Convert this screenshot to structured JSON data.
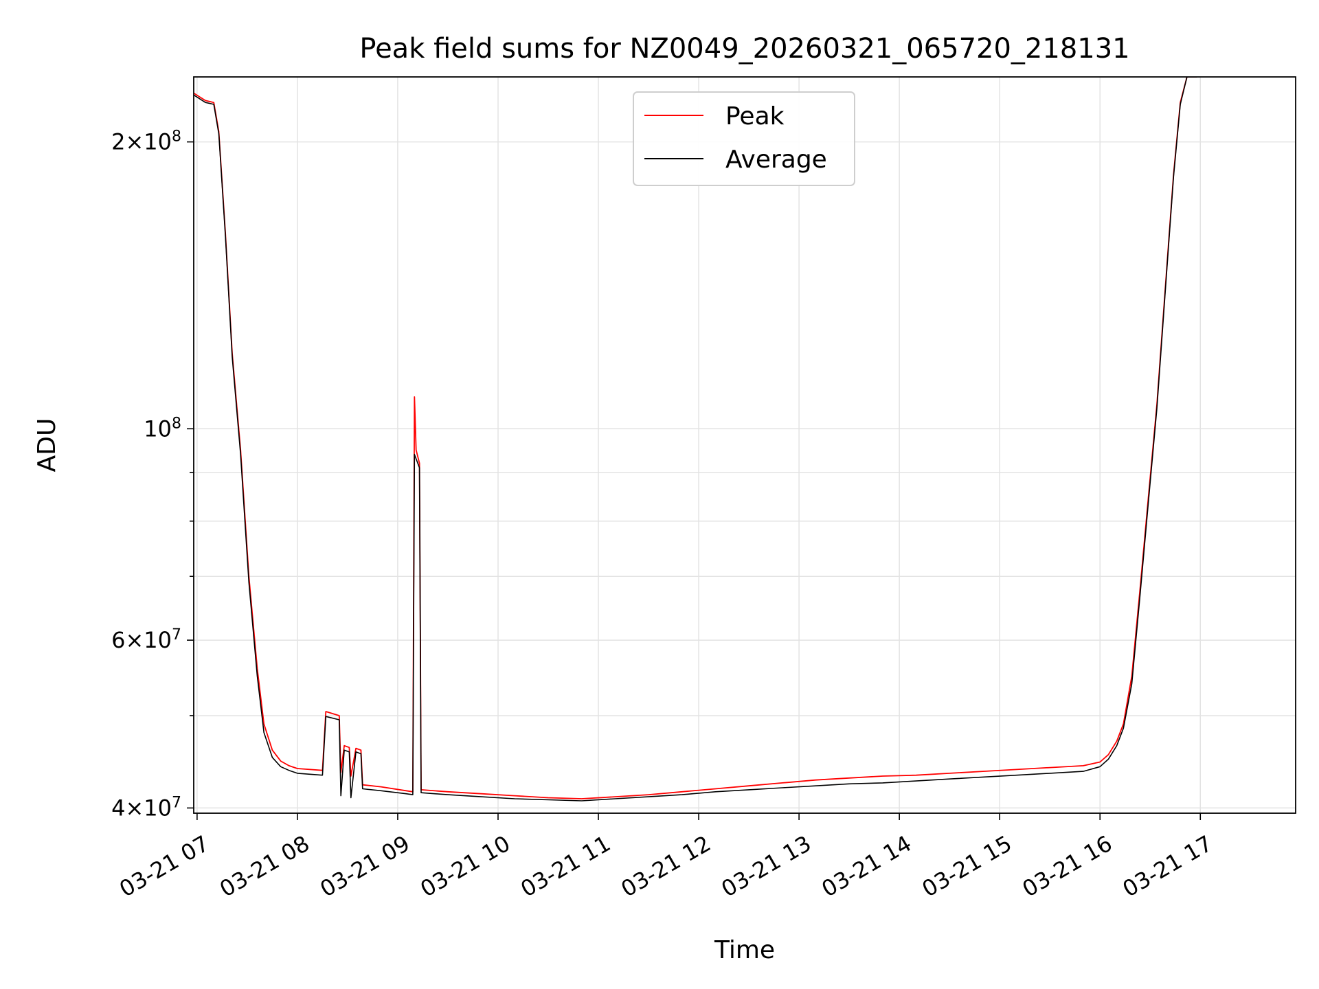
{
  "chart_data": {
    "type": "line",
    "title": "Peak field sums for NZ0049_20260321_065720_218131",
    "xlabel": "Time",
    "ylabel": "ADU",
    "yscale": "log",
    "ylim": [
      39500000,
      234000000
    ],
    "xlim": [
      "03-21 06:58",
      "03-21 17:57"
    ],
    "grid": true,
    "legend_position": "upper-center",
    "x_ticks": [
      {
        "t": "03-21 07:00",
        "label": "03-21 07"
      },
      {
        "t": "03-21 08:00",
        "label": "03-21 08"
      },
      {
        "t": "03-21 09:00",
        "label": "03-21 09"
      },
      {
        "t": "03-21 10:00",
        "label": "03-21 10"
      },
      {
        "t": "03-21 11:00",
        "label": "03-21 11"
      },
      {
        "t": "03-21 12:00",
        "label": "03-21 12"
      },
      {
        "t": "03-21 13:00",
        "label": "03-21 13"
      },
      {
        "t": "03-21 14:00",
        "label": "03-21 14"
      },
      {
        "t": "03-21 15:00",
        "label": "03-21 15"
      },
      {
        "t": "03-21 16:00",
        "label": "03-21 16"
      },
      {
        "t": "03-21 17:00",
        "label": "03-21 17"
      }
    ],
    "y_ticks_major": [
      {
        "value": 40000000,
        "base": "4",
        "exp": "7"
      },
      {
        "value": 60000000,
        "base": "6",
        "exp": "7"
      },
      {
        "value": 100000000,
        "base": "",
        "exp": "8"
      },
      {
        "value": 200000000,
        "base": "2",
        "exp": "8"
      }
    ],
    "y_ticks_minor": [
      50000000,
      70000000,
      80000000,
      90000000
    ],
    "series": [
      {
        "name": "Peak",
        "color": "#ff0000",
        "points": [
          [
            "03-21 06:58",
            225000000
          ],
          [
            "03-21 07:05",
            221000000
          ],
          [
            "03-21 07:10",
            220000000
          ],
          [
            "03-21 07:13",
            205000000
          ],
          [
            "03-21 07:17",
            160000000
          ],
          [
            "03-21 07:21",
            120000000
          ],
          [
            "03-21 07:26",
            95000000
          ],
          [
            "03-21 07:31",
            70000000
          ],
          [
            "03-21 07:36",
            56000000
          ],
          [
            "03-21 07:40",
            49000000
          ],
          [
            "03-21 07:45",
            46000000
          ],
          [
            "03-21 07:50",
            44800000
          ],
          [
            "03-21 07:55",
            44300000
          ],
          [
            "03-21 08:00",
            44000000
          ],
          [
            "03-21 08:15",
            43800000
          ],
          [
            "03-21 08:17",
            50500000
          ],
          [
            "03-21 08:25",
            50000000
          ],
          [
            "03-21 08:26",
            43600000
          ],
          [
            "03-21 08:28",
            46500000
          ],
          [
            "03-21 08:31",
            46300000
          ],
          [
            "03-21 08:32",
            43200000
          ],
          [
            "03-21 08:35",
            46200000
          ],
          [
            "03-21 08:38",
            46000000
          ],
          [
            "03-21 08:39",
            42300000
          ],
          [
            "03-21 08:50",
            42100000
          ],
          [
            "03-21 09:05",
            41700000
          ],
          [
            "03-21 09:09",
            41600000
          ],
          [
            "03-21 09:10",
            108000000
          ],
          [
            "03-21 09:11",
            95000000
          ],
          [
            "03-21 09:13",
            92000000
          ],
          [
            "03-21 09:14",
            41800000
          ],
          [
            "03-21 09:30",
            41600000
          ],
          [
            "03-21 09:50",
            41400000
          ],
          [
            "03-21 10:10",
            41200000
          ],
          [
            "03-21 10:30",
            41000000
          ],
          [
            "03-21 10:50",
            40900000
          ],
          [
            "03-21 11:10",
            41100000
          ],
          [
            "03-21 11:30",
            41300000
          ],
          [
            "03-21 11:50",
            41600000
          ],
          [
            "03-21 12:10",
            41900000
          ],
          [
            "03-21 12:30",
            42200000
          ],
          [
            "03-21 12:50",
            42500000
          ],
          [
            "03-21 13:10",
            42800000
          ],
          [
            "03-21 13:30",
            43000000
          ],
          [
            "03-21 13:50",
            43200000
          ],
          [
            "03-21 14:10",
            43300000
          ],
          [
            "03-21 14:30",
            43500000
          ],
          [
            "03-21 14:50",
            43700000
          ],
          [
            "03-21 15:10",
            43900000
          ],
          [
            "03-21 15:30",
            44100000
          ],
          [
            "03-21 15:50",
            44300000
          ],
          [
            "03-21 16:00",
            44700000
          ],
          [
            "03-21 16:05",
            45500000
          ],
          [
            "03-21 16:10",
            47000000
          ],
          [
            "03-21 16:14",
            49000000
          ],
          [
            "03-21 16:19",
            55000000
          ],
          [
            "03-21 16:24",
            68000000
          ],
          [
            "03-21 16:29",
            85000000
          ],
          [
            "03-21 16:34",
            106000000
          ],
          [
            "03-21 16:39",
            140000000
          ],
          [
            "03-21 16:44",
            185000000
          ],
          [
            "03-21 16:48",
            220000000
          ],
          [
            "03-21 16:52",
            234000000
          ],
          [
            "03-21 16:58",
            234000000
          ]
        ]
      },
      {
        "name": "Average",
        "color": "#000000",
        "points": [
          [
            "03-21 06:58",
            224000000
          ],
          [
            "03-21 07:05",
            220000000
          ],
          [
            "03-21 07:10",
            219000000
          ],
          [
            "03-21 07:13",
            204000000
          ],
          [
            "03-21 07:17",
            159000000
          ],
          [
            "03-21 07:21",
            119000000
          ],
          [
            "03-21 07:26",
            94000000
          ],
          [
            "03-21 07:31",
            69000000
          ],
          [
            "03-21 07:36",
            55000000
          ],
          [
            "03-21 07:40",
            48000000
          ],
          [
            "03-21 07:45",
            45200000
          ],
          [
            "03-21 07:50",
            44200000
          ],
          [
            "03-21 07:55",
            43800000
          ],
          [
            "03-21 08:00",
            43500000
          ],
          [
            "03-21 08:15",
            43300000
          ],
          [
            "03-21 08:17",
            49900000
          ],
          [
            "03-21 08:25",
            49500000
          ],
          [
            "03-21 08:26",
            41200000
          ],
          [
            "03-21 08:28",
            46000000
          ],
          [
            "03-21 08:31",
            45800000
          ],
          [
            "03-21 08:32",
            41000000
          ],
          [
            "03-21 08:35",
            45800000
          ],
          [
            "03-21 08:38",
            45600000
          ],
          [
            "03-21 08:39",
            41900000
          ],
          [
            "03-21 08:50",
            41700000
          ],
          [
            "03-21 09:05",
            41400000
          ],
          [
            "03-21 09:09",
            41300000
          ],
          [
            "03-21 09:10",
            94000000
          ],
          [
            "03-21 09:13",
            91000000
          ],
          [
            "03-21 09:14",
            41500000
          ],
          [
            "03-21 09:30",
            41300000
          ],
          [
            "03-21 09:50",
            41100000
          ],
          [
            "03-21 10:10",
            40900000
          ],
          [
            "03-21 10:30",
            40800000
          ],
          [
            "03-21 10:50",
            40700000
          ],
          [
            "03-21 11:10",
            40900000
          ],
          [
            "03-21 11:30",
            41100000
          ],
          [
            "03-21 11:50",
            41300000
          ],
          [
            "03-21 12:10",
            41600000
          ],
          [
            "03-21 12:30",
            41800000
          ],
          [
            "03-21 12:50",
            42000000
          ],
          [
            "03-21 13:10",
            42200000
          ],
          [
            "03-21 13:30",
            42400000
          ],
          [
            "03-21 13:50",
            42500000
          ],
          [
            "03-21 14:10",
            42700000
          ],
          [
            "03-21 14:30",
            42900000
          ],
          [
            "03-21 14:50",
            43100000
          ],
          [
            "03-21 15:10",
            43300000
          ],
          [
            "03-21 15:30",
            43500000
          ],
          [
            "03-21 15:50",
            43700000
          ],
          [
            "03-21 16:00",
            44200000
          ],
          [
            "03-21 16:05",
            45000000
          ],
          [
            "03-21 16:10",
            46500000
          ],
          [
            "03-21 16:14",
            48500000
          ],
          [
            "03-21 16:19",
            54000000
          ],
          [
            "03-21 16:24",
            67000000
          ],
          [
            "03-21 16:29",
            84000000
          ],
          [
            "03-21 16:34",
            105000000
          ],
          [
            "03-21 16:39",
            139000000
          ],
          [
            "03-21 16:44",
            184000000
          ],
          [
            "03-21 16:48",
            219000000
          ],
          [
            "03-21 16:52",
            234000000
          ],
          [
            "03-21 16:58",
            234000000
          ]
        ]
      }
    ]
  }
}
